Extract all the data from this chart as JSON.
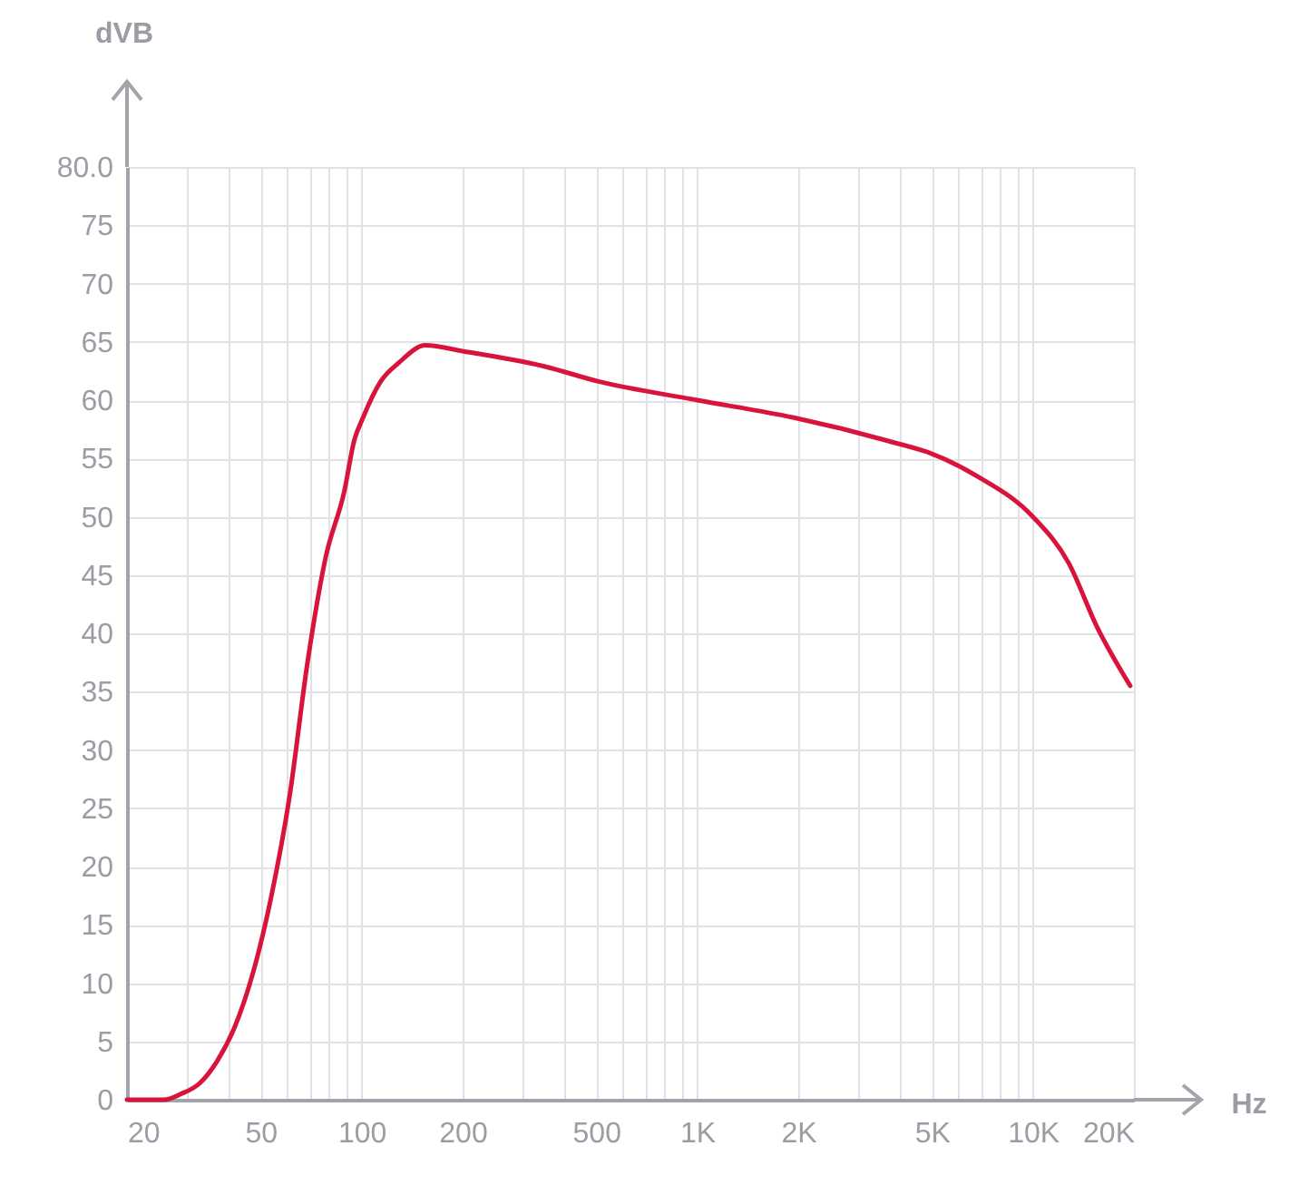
{
  "chart_data": {
    "type": "line",
    "xlabel": "Hz",
    "ylabel": "dVB",
    "x": [
      20,
      25.7,
      29,
      32.9,
      37.1,
      42.1,
      47.6,
      53.7,
      61,
      69,
      78,
      89,
      95,
      101,
      114,
      129,
      155,
      200,
      350,
      508,
      1000,
      1940,
      3710,
      5000,
      6900,
      10000,
      12800,
      15500,
      19500
    ],
    "series": [
      {
        "color": "#d9143c",
        "values": [
          0,
          0,
          0.5,
          1.4,
          3.3,
          6.4,
          11,
          17.3,
          26,
          37.5,
          46.4,
          52.3,
          56.5,
          58.5,
          61.6,
          63.2,
          64.7,
          64.2,
          62.9,
          61.6,
          60,
          58.5,
          56.5,
          55.4,
          53.4,
          50,
          46,
          40.6,
          35.5
        ]
      }
    ],
    "log": "x",
    "xlim": [
      20,
      20000
    ],
    "ylim": [
      0,
      80
    ],
    "xticks": [
      20,
      {
        "value": 30,
        "label": null
      },
      {
        "value": 40,
        "label": null
      },
      50,
      {
        "value": 60,
        "label": null
      },
      {
        "value": 70,
        "label": null
      },
      {
        "value": 80,
        "label": null
      },
      {
        "value": 90,
        "label": null
      },
      100,
      200,
      {
        "value": 300,
        "label": null
      },
      {
        "value": 400,
        "label": null
      },
      500,
      {
        "value": 600,
        "label": null
      },
      {
        "value": 700,
        "label": null
      },
      {
        "value": 800,
        "label": null
      },
      {
        "value": 900,
        "label": null
      },
      {
        "value": 1000,
        "label": "1K"
      },
      {
        "value": 2000,
        "label": "2K"
      },
      {
        "value": 3000,
        "label": null
      },
      {
        "value": 4000,
        "label": null
      },
      {
        "value": 5000,
        "label": "5K"
      },
      {
        "value": 6000,
        "label": null
      },
      {
        "value": 7000,
        "label": null
      },
      {
        "value": 8000,
        "label": null
      },
      {
        "value": 9000,
        "label": null
      },
      {
        "value": 10000,
        "label": "10K"
      },
      {
        "value": 20000,
        "label": "20K"
      }
    ],
    "yticks": [
      0,
      5,
      10,
      15,
      20,
      25,
      30,
      35,
      40,
      45,
      50,
      55,
      60,
      65,
      70,
      75,
      {
        "value": 80,
        "label": "80.0"
      }
    ],
    "grid": true,
    "marker": "none",
    "line_style": "solid"
  }
}
